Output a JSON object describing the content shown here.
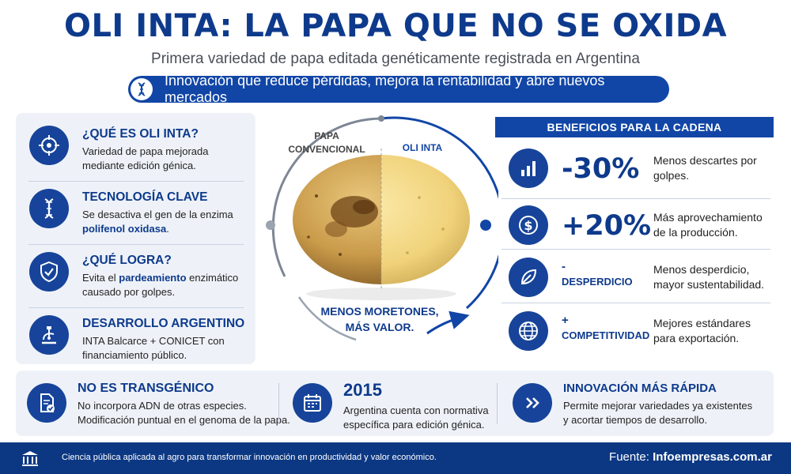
{
  "header": {
    "title": "OLI INTA: LA PAPA QUE NO SE OXIDA",
    "subtitle": "Primera variedad de papa editada genéticamente registrada en Argentina",
    "banner": "Innovación que reduce pérdidas, mejora la rentabilidad y abre nuevos mercados",
    "banner_icon": "dna-icon"
  },
  "left_cards": [
    {
      "icon": "target-icon",
      "title": "¿QUÉ ES OLI INTA?",
      "text": "Variedad de papa mejorada mediante edición génica."
    },
    {
      "icon": "dna-icon",
      "title": "TECNOLOGÍA CLAVE",
      "text_pre": "Se desactiva el gen de la enzima",
      "text_bold": "polifenol oxidasa",
      "text_post": "."
    },
    {
      "icon": "shield-check-icon",
      "title": "¿QUÉ LOGRA?",
      "text_pre": "Evita el",
      "text_bold": "pardeamiento",
      "text_post": "enzimático causado por golpes."
    },
    {
      "icon": "microscope-icon",
      "title": "DESARROLLO ARGENTINO",
      "text": "INTA Balcarce + CONICET con financiamiento público."
    }
  ],
  "center": {
    "label_left_1": "PAPA",
    "label_left_2": "CONVENCIONAL",
    "label_right": "OLI INTA",
    "caption_1": "MENOS MORETONES,",
    "caption_2": "MÁS VALOR."
  },
  "benefits": {
    "header": "BENEFICIOS PARA LA CADENA",
    "rows": [
      {
        "icon": "bar-chart-icon",
        "value": "-30%",
        "desc": "Menos descartes por golpes."
      },
      {
        "icon": "dollar-icon",
        "value": "+20%",
        "desc": "Más aprovechamiento de la producción."
      },
      {
        "icon": "leaf-icon",
        "value_sign": "-",
        "value_word": "DESPERDICIO",
        "desc": "Menos desperdicio, mayor sustentabilidad."
      },
      {
        "icon": "globe-icon",
        "value_sign": "+",
        "value_word": "COMPETITIVIDAD",
        "desc": "Mejores estándares para exportación."
      }
    ]
  },
  "bottom": [
    {
      "icon": "document-check-icon",
      "title": "NO ES TRANSGÉNICO",
      "line1": "No incorpora ADN de otras especies.",
      "line2": "Modificación puntual en el genoma de la papa."
    },
    {
      "icon": "calendar-icon",
      "title": "2015",
      "line1": "Argentina cuenta con normativa",
      "line2": "específica para edición génica."
    },
    {
      "icon": "fast-forward-icon",
      "title": "INNOVACIÓN MÁS RÁPIDA",
      "line1": "Permite mejorar variedades ya existentes",
      "line2": "y acortar tiempos de desarrollo."
    }
  ],
  "footer": {
    "icon": "institution-icon",
    "text": "Ciencia pública aplicada al agro para transformar innovación en productividad y valor económico.",
    "source_label": "Fuente:",
    "source_value": "Infoempresas.com.ar"
  },
  "colors": {
    "primary": "#0e3a8c",
    "accent": "#1146a6",
    "panel": "#eef2f8"
  }
}
